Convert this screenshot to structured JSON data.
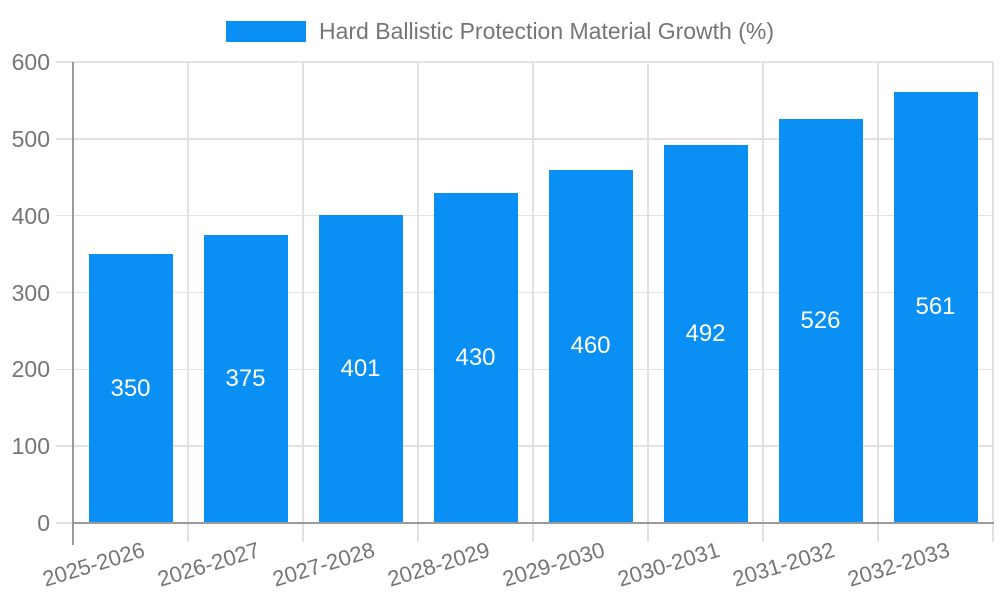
{
  "legend": {
    "label": "Hard Ballistic Protection Material Growth (%)"
  },
  "chart_data": {
    "type": "bar",
    "title": "Hard Ballistic Protection Material Growth (%)",
    "categories": [
      "2025-2026",
      "2026-2027",
      "2027-2028",
      "2028-2029",
      "2029-2030",
      "2030-2031",
      "2031-2032",
      "2032-2033"
    ],
    "values": [
      350,
      375,
      401,
      430,
      460,
      492,
      526,
      561
    ],
    "xlabel": "",
    "ylabel": "",
    "ylim": [
      0,
      600
    ],
    "yticks": [
      0,
      100,
      200,
      300,
      400,
      500,
      600
    ],
    "grid": true,
    "legend_position": "top-center",
    "value_labels": "inside-middle",
    "colors": {
      "bar": "#0a90f5",
      "value_label": "#ffffff",
      "grid_line": "#e2e2e2",
      "axis_line": "#9a9a9a",
      "tick_label": "#757575",
      "legend_text": "#757575",
      "background": "#ffffff"
    }
  }
}
